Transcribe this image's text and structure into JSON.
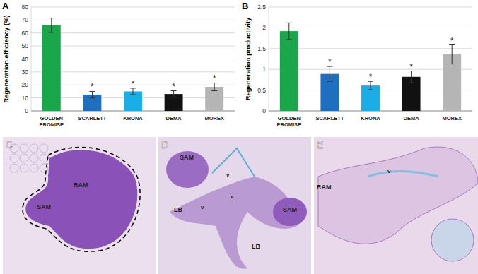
{
  "chart_data": [
    {
      "type": "bar",
      "title": "A",
      "y_label": "Regeneration efficiency (%)",
      "categories": [
        "GOLDEN PROMISE",
        "SCARLETT",
        "KRONA",
        "DEMA",
        "MOREX"
      ],
      "values": [
        66,
        12.5,
        15,
        13,
        18.5
      ],
      "errors": [
        5.5,
        2.5,
        2.5,
        2.5,
        3
      ],
      "annotations": [
        null,
        "*",
        "*",
        "*",
        "*"
      ],
      "colors": [
        "#1aa64a",
        "#1f6fc0",
        "#1aaee8",
        "#111111",
        "#b5b5b5"
      ],
      "ylim": [
        0,
        80
      ],
      "yticks": [
        0,
        10,
        20,
        30,
        40,
        50,
        60,
        70,
        80
      ],
      "grid": true
    },
    {
      "type": "bar",
      "title": "B",
      "y_label": "Regeneration productivity",
      "categories": [
        "GOLDEN PROMISE",
        "SCARLETT",
        "KRONA",
        "DEMA",
        "MOREX"
      ],
      "values": [
        1.92,
        0.89,
        0.61,
        0.82,
        1.36
      ],
      "errors": [
        0.2,
        0.18,
        0.1,
        0.14,
        0.23
      ],
      "annotations": [
        null,
        "*",
        "*",
        "*",
        "*"
      ],
      "colors": [
        "#1aa64a",
        "#1f6fc0",
        "#1aaee8",
        "#111111",
        "#b5b5b5"
      ],
      "ylim": [
        0,
        2.5
      ],
      "yticks": [
        0,
        0.5,
        1,
        1.5,
        2,
        2.5
      ],
      "grid": true
    }
  ],
  "micrographs": [
    {
      "label": "C",
      "annotations": [
        "RAM",
        "SAM"
      ]
    },
    {
      "label": "D",
      "annotations": [
        "SAM",
        "v",
        "LB",
        "v",
        "v",
        "SAM",
        "LB"
      ]
    },
    {
      "label": "E",
      "annotations": [
        "v",
        "RAM"
      ]
    }
  ]
}
